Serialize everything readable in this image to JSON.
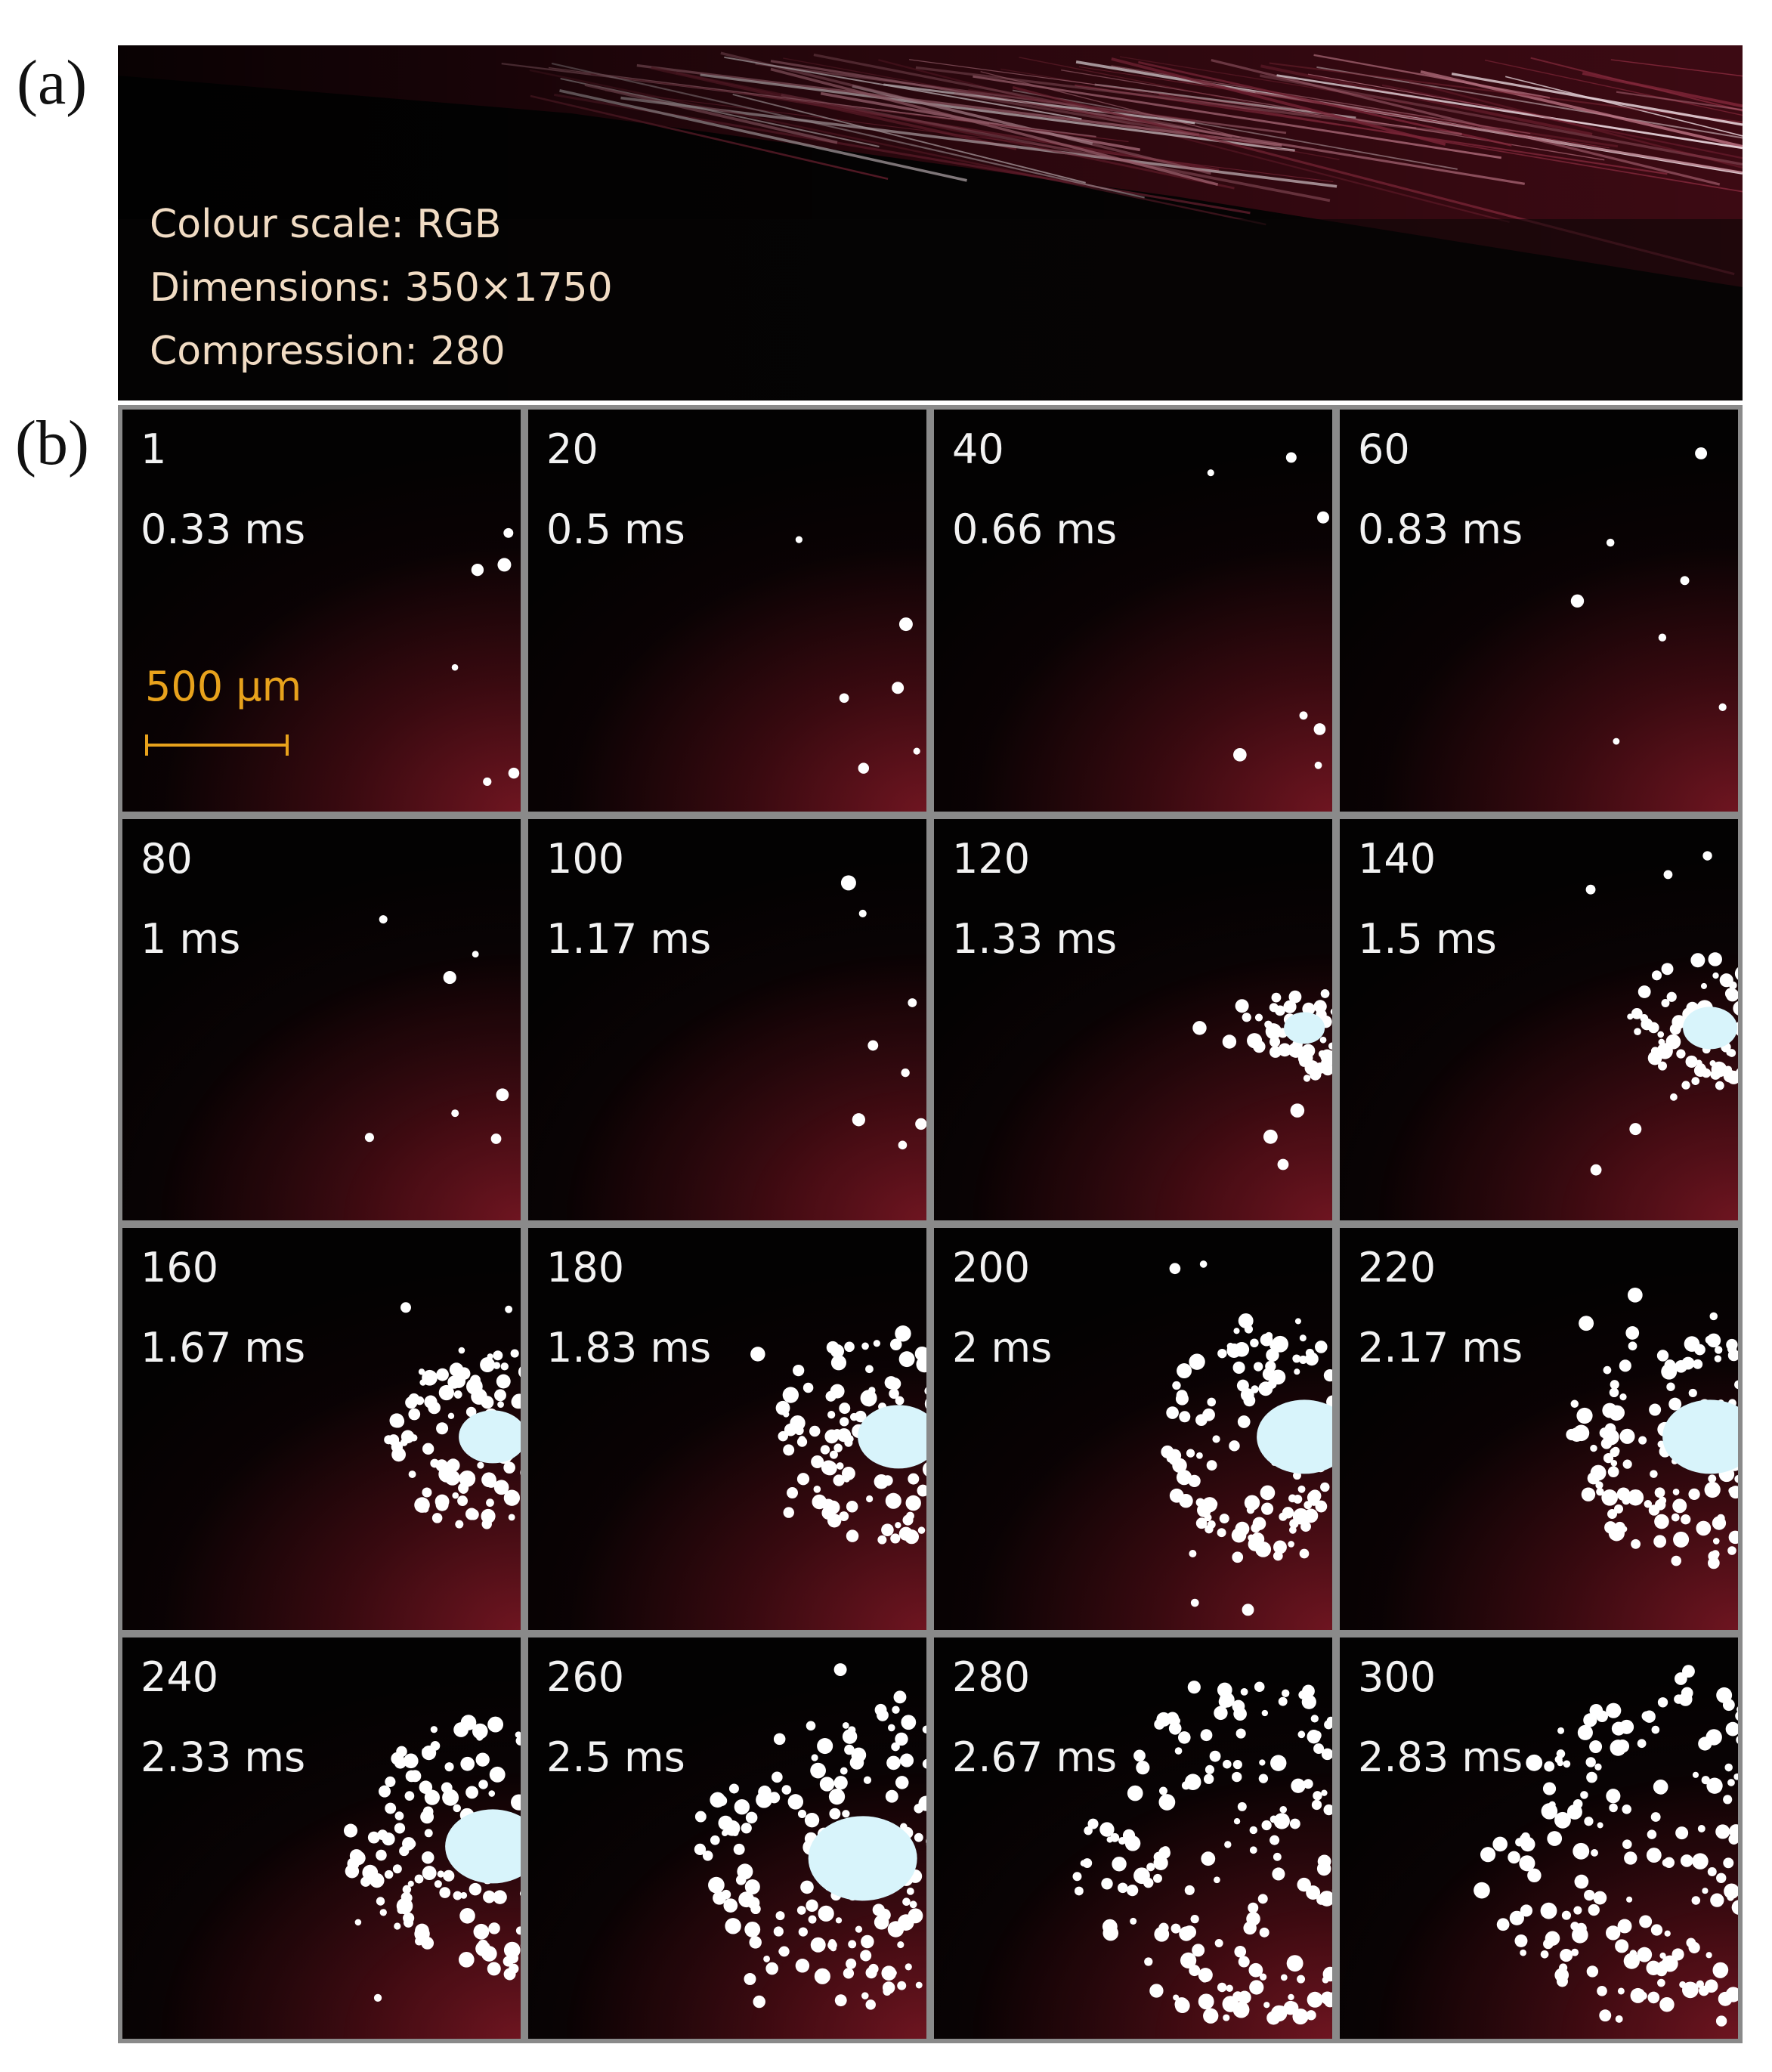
{
  "panel_labels": {
    "a": "(a)",
    "b": "(b)"
  },
  "image_info": {
    "lines": [
      "Colour scale: RGB",
      "Dimensions: 350×1750",
      "Compression: 280"
    ]
  },
  "scale_bar": {
    "label": "500 µm",
    "color": "#e8a21c"
  },
  "colors": {
    "background_red": "#741622",
    "droplet": "#ffffff",
    "plume_core": "#d8f4fb"
  },
  "frames": [
    {
      "number": "1",
      "time": "0.33 ms",
      "spray_size": 0
    },
    {
      "number": "20",
      "time": "0.5 ms",
      "spray_size": 0
    },
    {
      "number": "40",
      "time": "0.66 ms",
      "spray_size": 0
    },
    {
      "number": "60",
      "time": "0.83 ms",
      "spray_size": 0
    },
    {
      "number": "80",
      "time": "1 ms",
      "spray_size": 0
    },
    {
      "number": "100",
      "time": "1.17 ms",
      "spray_size": 0
    },
    {
      "number": "120",
      "time": "1.33 ms",
      "spray_size": 1
    },
    {
      "number": "140",
      "time": "1.5 ms",
      "spray_size": 2
    },
    {
      "number": "160",
      "time": "1.67 ms",
      "spray_size": 3
    },
    {
      "number": "180",
      "time": "1.83 ms",
      "spray_size": 4
    },
    {
      "number": "200",
      "time": "2 ms",
      "spray_size": 5
    },
    {
      "number": "220",
      "time": "2.17 ms",
      "spray_size": 5
    },
    {
      "number": "240",
      "time": "2.33 ms",
      "spray_size": 5
    },
    {
      "number": "260",
      "time": "2.5 ms",
      "spray_size": 6
    },
    {
      "number": "280",
      "time": "2.67 ms",
      "spray_size": 7
    },
    {
      "number": "300",
      "time": "2.83 ms",
      "spray_size": 7
    }
  ]
}
